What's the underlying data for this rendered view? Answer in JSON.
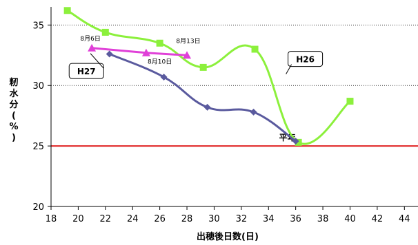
{
  "chart_data": {
    "type": "line",
    "xlabel": "出穂後日数(日)",
    "ylabel": [
      "籾",
      "水",
      "分",
      "(",
      "%",
      ")"
    ],
    "xlim": [
      18,
      45
    ],
    "ylim": [
      20,
      36.5
    ],
    "xticks": [
      18,
      20,
      22,
      24,
      26,
      28,
      30,
      32,
      34,
      36,
      38,
      40,
      42,
      44
    ],
    "yticks": [
      20,
      25,
      30,
      35
    ],
    "grid": "horizontal-dotted",
    "series": [
      {
        "name": "H26",
        "color": "#8cf03c",
        "marker": "square",
        "smooth": true,
        "points": [
          [
            19.2,
            36.2
          ],
          [
            22,
            34.4
          ],
          [
            26,
            33.5
          ],
          [
            29.2,
            31.5
          ],
          [
            33,
            33
          ],
          [
            36.2,
            25.3
          ],
          [
            40,
            28.7
          ]
        ]
      },
      {
        "name": "H27",
        "color": "#e040d8",
        "marker": "triangle",
        "smooth": false,
        "points": [
          [
            21,
            33.1
          ],
          [
            25,
            32.7
          ],
          [
            28,
            32.5
          ]
        ]
      },
      {
        "name": "",
        "color": "#5a5a9e",
        "marker": "diamond",
        "smooth": true,
        "points": [
          [
            22.3,
            32.6
          ],
          [
            26.3,
            30.7
          ],
          [
            29.5,
            28.2
          ],
          [
            32.9,
            27.8
          ],
          [
            36,
            25.4
          ]
        ]
      }
    ],
    "reference_line": {
      "label": "平年",
      "y": 25,
      "color": "#e02020"
    },
    "annotations": [
      {
        "text": "8月6日",
        "x": 20.9,
        "y": 33.7
      },
      {
        "text": "8月10日",
        "x": 26,
        "y": 31.8
      },
      {
        "text": "8月13日",
        "x": 28.1,
        "y": 33.5
      }
    ],
    "callouts": [
      {
        "text": "H27",
        "x": 20.5,
        "y": 31.2
      },
      {
        "text": "H26",
        "x": 36.2,
        "y": 32.2
      }
    ]
  }
}
